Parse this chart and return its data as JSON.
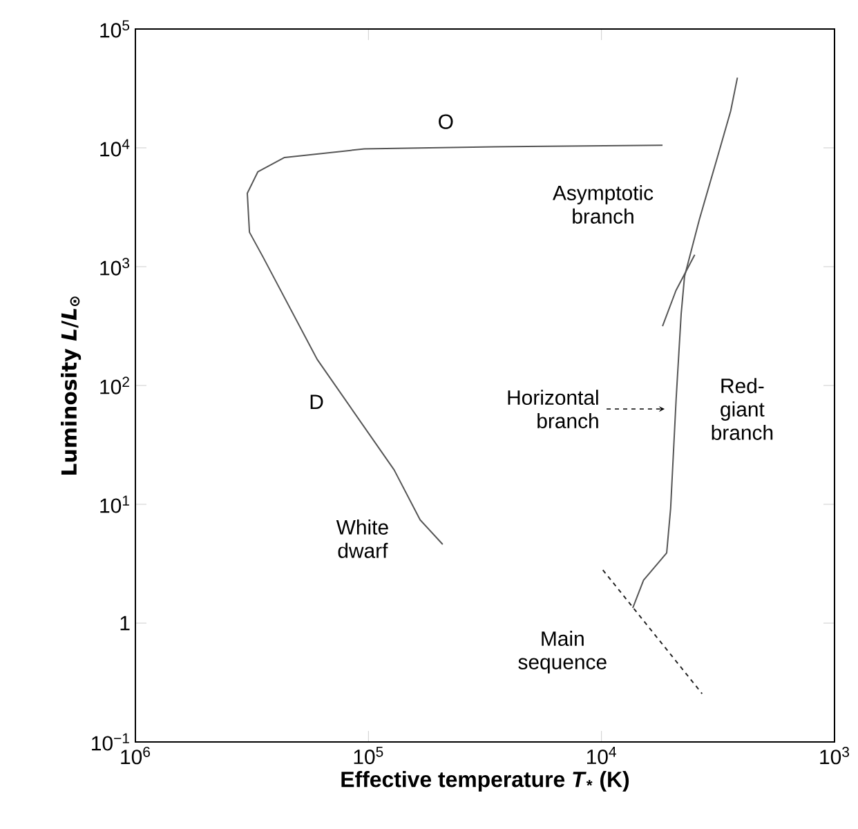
{
  "chart_data": {
    "type": "line",
    "log": "xy",
    "marker": "none",
    "xlabel": "Effective temperature *T*$_{*}$ (K)",
    "ylabel": "Luminosity *L*/*L*$_{⊙}$",
    "xlim": [
      1000000,
      1000
    ],
    "ylim": [
      0.1,
      100000
    ],
    "xticks": [
      {
        "value": 1000000,
        "label": "10$^{6}$"
      },
      {
        "value": 100000,
        "label": "10$^{5}$"
      },
      {
        "value": 10000,
        "label": "10$^{4}$"
      },
      {
        "value": 1000,
        "label": "10$^{3}$"
      }
    ],
    "yticks": [
      {
        "value": 0.1,
        "label": "10$^{−1}$"
      },
      1,
      {
        "value": 10,
        "label": "10$^{1}$"
      },
      {
        "value": 100,
        "label": "10$^{2}$"
      },
      {
        "value": 1000,
        "label": "10$^{3}$"
      },
      {
        "value": 10000,
        "label": "10$^{4}$"
      },
      {
        "value": 100000,
        "label": "10$^{5}$"
      }
    ],
    "series": [
      {
        "color": "#222222",
        "line_style": "dashed",
        "x": [
          9860,
          3700
        ],
        "values": [
          2.8,
          0.255
        ]
      },
      {
        "color": "#555555",
        "line_style": "solid",
        "x": [
          7340,
          6600,
          5250,
          5050,
          4780,
          4550,
          4400,
          3800,
          3200,
          2790,
          2610
        ],
        "values": [
          1.34,
          2.3,
          3.9,
          9.2,
          78,
          400,
          830,
          2500,
          8000,
          20400,
          39000
        ]
      },
      {
        "color": "#555555",
        "line_style": "solid",
        "x": [
          5470,
          4790,
          3980
        ],
        "values": [
          316,
          630,
          1260
        ]
      },
      {
        "color": "#555555",
        "line_style": "solid",
        "x": [
          5470,
          28800,
          104000,
          229000,
          298000,
          331000,
          324000,
          283000,
          166000,
          77600,
          60000,
          48000
        ],
        "values": [
          10500,
          10200,
          9800,
          8300,
          6300,
          4150,
          1950,
          1200,
          166,
          19.5,
          7.4,
          4.6
        ]
      }
    ],
    "annotations": [
      "O",
      "D",
      "White dwarf",
      "Horizontal branch",
      "Asymptotic branch",
      "Red-giant branch",
      "Main sequence"
    ]
  }
}
